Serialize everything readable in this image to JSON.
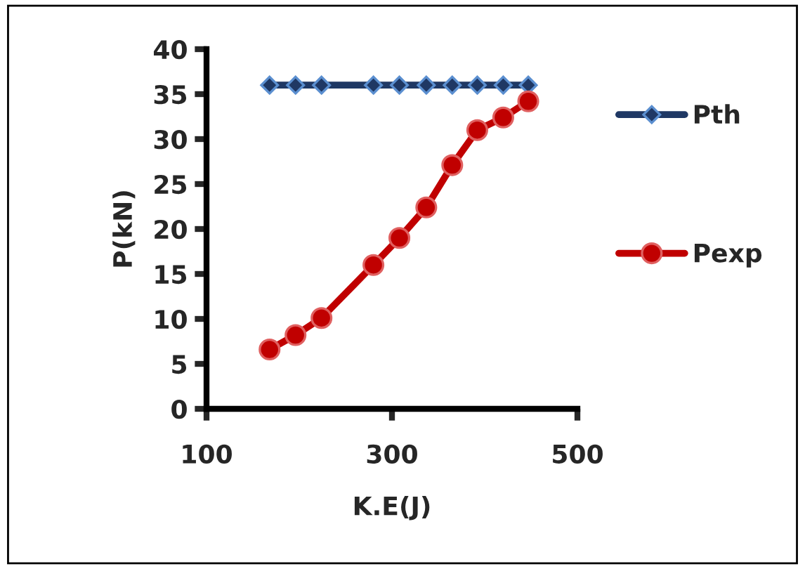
{
  "chart_data": {
    "type": "line",
    "xlabel": "K.E(J)",
    "ylabel": "P(kN)",
    "x": [
      168,
      196,
      224,
      280,
      308,
      337,
      365,
      392,
      420,
      447
    ],
    "series": [
      {
        "name": "Pth",
        "color": "#1f3864",
        "marker": "diamond",
        "values": [
          36,
          36,
          36,
          36,
          36,
          36,
          36,
          36,
          36,
          36
        ]
      },
      {
        "name": "Pexp",
        "color": "#c00000",
        "marker": "circle",
        "values": [
          6.6,
          8.2,
          10.1,
          16.0,
          19.0,
          22.4,
          27.1,
          31.0,
          32.4,
          34.2
        ]
      }
    ],
    "xlim": [
      100,
      500
    ],
    "xticks": [
      100,
      300,
      500
    ],
    "ylim": [
      0,
      40
    ],
    "yticks": [
      0,
      5,
      10,
      15,
      20,
      25,
      30,
      35,
      40
    ],
    "grid": false,
    "legend": "right"
  }
}
